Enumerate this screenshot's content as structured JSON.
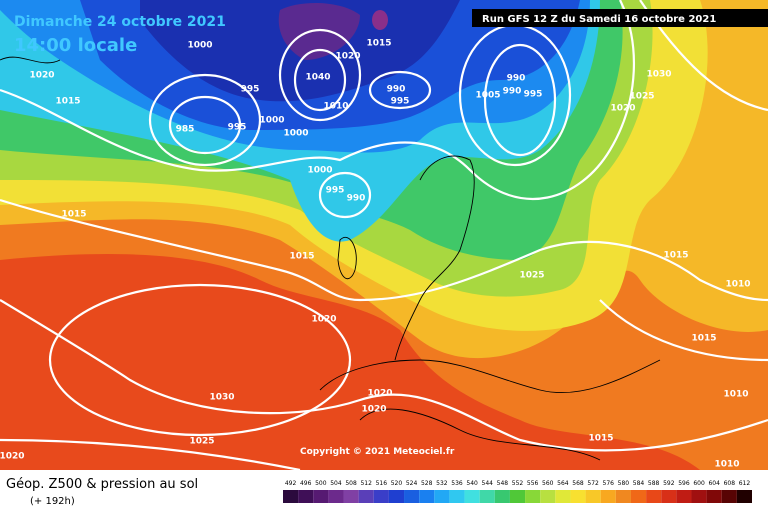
{
  "header": {
    "date": "Dimanche 24 octobre 2021",
    "time": "14:00 locale",
    "run": "Run GFS 12 Z du Samedi 16 octobre 2021"
  },
  "copyright": "Copyright © 2021 Meteociel.fr",
  "footer": {
    "title": "Géop. Z500 & pression au sol",
    "lead": "(+ 192h)"
  },
  "isobar_labels": [
    "1000",
    "1020",
    "1015",
    "995",
    "985",
    "995",
    "1000",
    "1000",
    "1040",
    "1020",
    "1015",
    "1010",
    "990",
    "995",
    "990",
    "1005",
    "990",
    "995",
    "1030",
    "1025",
    "1020",
    "1000",
    "995",
    "990",
    "1015",
    "1015",
    "1025",
    "1015",
    "1010",
    "1020",
    "1015",
    "1030",
    "1020",
    "1020",
    "1010",
    "1025",
    "1015",
    "1020",
    "1010"
  ],
  "color_scale": {
    "labels": [
      492,
      496,
      500,
      504,
      508,
      512,
      516,
      520,
      524,
      528,
      532,
      536,
      540,
      544,
      548,
      552,
      556,
      560,
      564,
      568,
      572,
      576,
      580,
      584,
      588,
      592,
      596,
      600,
      604,
      608,
      612
    ],
    "colors": [
      "#2b0a3d",
      "#3f0f57",
      "#561a72",
      "#6c2a8c",
      "#8040a4",
      "#5a3fb8",
      "#3a3ec8",
      "#1f3fd0",
      "#1a5fe0",
      "#1a80f0",
      "#22a8f5",
      "#30c8f0",
      "#40e0e0",
      "#40d8a8",
      "#38c870",
      "#50c838",
      "#88d838",
      "#b8e040",
      "#e0e838",
      "#f8e030",
      "#f8c828",
      "#f8a820",
      "#f08820",
      "#f06818",
      "#e84818",
      "#d83018",
      "#c01c14",
      "#a01010",
      "#800808",
      "#580404",
      "#200000"
    ]
  }
}
